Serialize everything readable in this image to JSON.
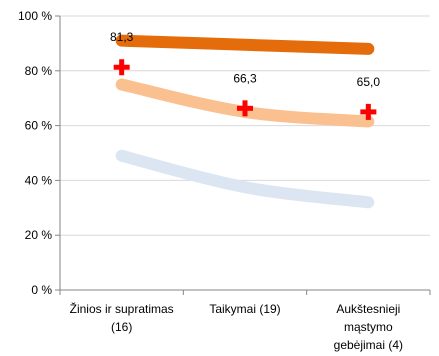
{
  "chart_data": {
    "type": "line",
    "categories": [
      [
        "Žinios ir supratimas",
        "(16)"
      ],
      [
        "Taikymai (19)"
      ],
      [
        "Aukštesnieji",
        "mąstymo",
        "gebėjimai (4)"
      ]
    ],
    "y_ticks": [
      "0 %",
      "20 %",
      "40 %",
      "60 %",
      "80 %",
      "100 %"
    ],
    "ylim": [
      0,
      100
    ],
    "grid": true,
    "series": [
      {
        "values": [
          91,
          89.5,
          88
        ],
        "color": "#e46c0a"
      },
      {
        "values": [
          75,
          65,
          61.5
        ],
        "color": "#fac090"
      },
      {
        "values": [
          49,
          37.5,
          32
        ],
        "color": "#dce6f2"
      }
    ],
    "markers": {
      "values": [
        81.3,
        66.3,
        65.0
      ],
      "labels": [
        "81,3",
        "66,3",
        "65,0"
      ],
      "color": "#ff0000"
    }
  }
}
